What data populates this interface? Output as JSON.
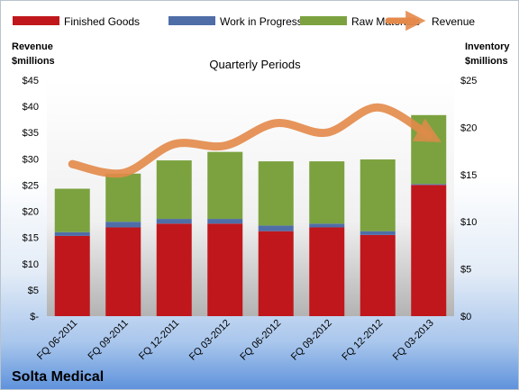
{
  "company": "Solta Medical",
  "chart_data": {
    "type": "bar",
    "stacked": true,
    "title": "Quarterly Periods",
    "left_axis_title": [
      "Revenue",
      "$millions"
    ],
    "right_axis_title": [
      "Inventory",
      "$millions"
    ],
    "categories": [
      "FQ 06-2011",
      "FQ 09-2011",
      "FQ 12-2011",
      "FQ 03-2012",
      "FQ 06-2012",
      "FQ 09-2012",
      "FQ 12-2012",
      "FQ 03-2013"
    ],
    "left_axis": {
      "min": 0,
      "max": 45,
      "step": 5,
      "tick_labels": [
        "$-",
        "$5",
        "$10",
        "$15",
        "$20",
        "$25",
        "$30",
        "$35",
        "$40",
        "$45"
      ]
    },
    "right_axis": {
      "min": 0,
      "max": 25,
      "step": 5,
      "tick_labels": [
        "$0",
        "$5",
        "$10",
        "$15",
        "$20",
        "$25"
      ]
    },
    "series": [
      {
        "name": "Finished Goods",
        "axis": "right",
        "color": "#c0171c",
        "values": [
          8.5,
          9.4,
          9.8,
          9.8,
          9.0,
          9.4,
          8.6,
          13.9
        ]
      },
      {
        "name": "Work in Progress",
        "axis": "right",
        "color": "#4f6ea8",
        "values": [
          0.4,
          0.6,
          0.5,
          0.5,
          0.6,
          0.4,
          0.4,
          0.1
        ]
      },
      {
        "name": "Raw Materials",
        "axis": "right",
        "color": "#7ba23f",
        "values": [
          4.6,
          5.1,
          6.2,
          7.1,
          6.8,
          6.6,
          7.6,
          7.3
        ]
      }
    ],
    "revenue": {
      "name": "Revenue",
      "axis": "left",
      "color": "#e48a4a",
      "values": [
        29.0,
        27.3,
        32.8,
        32.5,
        36.8,
        35.0,
        39.8,
        34.5
      ]
    },
    "legend_position": "top",
    "grid": false
  }
}
